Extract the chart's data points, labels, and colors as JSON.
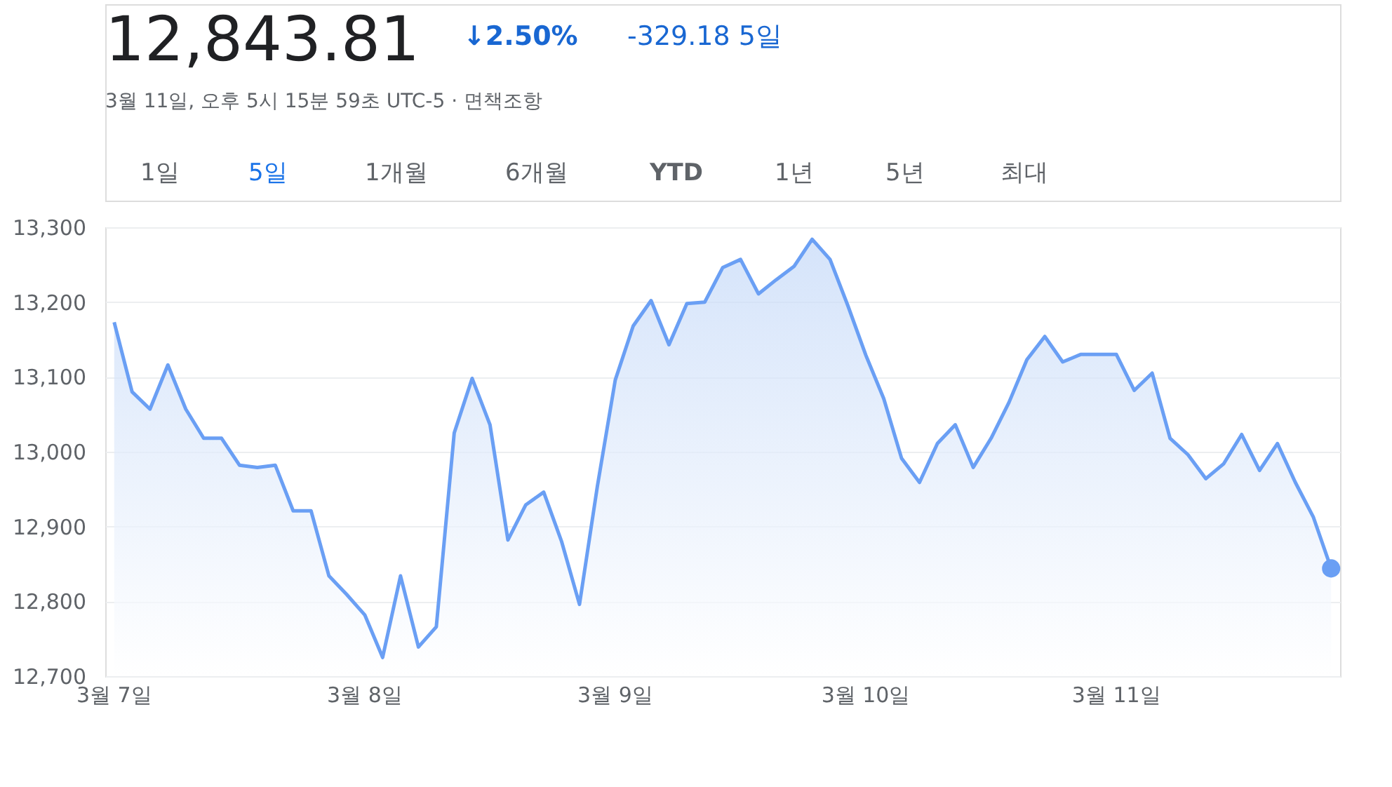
{
  "chart_data": {
    "type": "area",
    "title": "12,843.81",
    "subtitle": "3월 11일, 오후 5시 15분 59초 UTC-5 · 면책조항",
    "annotations": [
      "↓2.50%",
      "-329.18 5일",
      "1일",
      "5일",
      "1개월",
      "6개월",
      "YTD",
      "1년",
      "5년",
      "최대"
    ],
    "categories": [
      "3월 7일",
      null,
      null,
      null,
      null,
      null,
      null,
      null,
      null,
      null,
      null,
      null,
      null,
      null,
      "3월 8일",
      null,
      null,
      null,
      null,
      null,
      null,
      null,
      null,
      null,
      null,
      null,
      null,
      null,
      "3월 9일",
      null,
      null,
      null,
      null,
      null,
      null,
      null,
      null,
      null,
      null,
      null,
      null,
      null,
      "3월 10일",
      null,
      null,
      null,
      null,
      null,
      null,
      null,
      null,
      null,
      null,
      null,
      null,
      null,
      "3월 11일",
      null,
      null,
      null,
      null,
      null,
      null,
      null,
      null,
      null,
      null,
      null,
      null
    ],
    "series": [
      {
        "color": "#6a9ff4",
        "values": [
          13173,
          13080,
          13057,
          13116,
          13057,
          13018,
          13018,
          12982,
          12979,
          12982,
          12921,
          12921,
          12834,
          12809,
          12782,
          12725,
          12834,
          12739,
          12766,
          13025,
          13098,
          13036,
          12882,
          12929,
          12946,
          12880,
          12796,
          12954,
          13096,
          13168,
          13202,
          13143,
          13198,
          13200,
          13246,
          13257,
          13211,
          13230,
          13248,
          13284,
          13257,
          13195,
          13129,
          13071,
          12991,
          12959,
          13011,
          13036,
          12979,
          13018,
          13066,
          13123,
          13154,
          13120,
          13130,
          13130,
          13130,
          13082,
          13105,
          13018,
          12996,
          12964,
          12984,
          13023,
          12975,
          13011,
          12959,
          12913,
          12844
        ]
      },
      {
        "type": "scatter",
        "marker": "circle",
        "color": "#6a9ff4",
        "values": [
          null,
          null,
          null,
          null,
          null,
          null,
          null,
          null,
          null,
          null,
          null,
          null,
          null,
          null,
          null,
          null,
          null,
          null,
          null,
          null,
          null,
          null,
          null,
          null,
          null,
          null,
          null,
          null,
          null,
          null,
          null,
          null,
          null,
          null,
          null,
          null,
          null,
          null,
          null,
          null,
          null,
          null,
          null,
          null,
          null,
          null,
          null,
          null,
          null,
          null,
          null,
          null,
          null,
          null,
          null,
          null,
          null,
          null,
          null,
          null,
          null,
          null,
          null,
          null,
          null,
          null,
          null,
          null,
          12844
        ]
      }
    ],
    "marker": "none",
    "line_style": "solid",
    "grid": "y",
    "legend": false,
    "ylim": [
      12700,
      13300
    ],
    "yticks": [
      {
        "value": 12700,
        "label": "12,700"
      },
      {
        "value": 12800,
        "label": "12,800"
      },
      {
        "value": 12900,
        "label": "12,900"
      },
      {
        "value": 13000,
        "label": "13,000"
      },
      {
        "value": 13100,
        "label": "13,100"
      },
      {
        "value": 13200,
        "label": "13,200"
      },
      {
        "value": 13300,
        "label": "13,300"
      }
    ]
  }
}
